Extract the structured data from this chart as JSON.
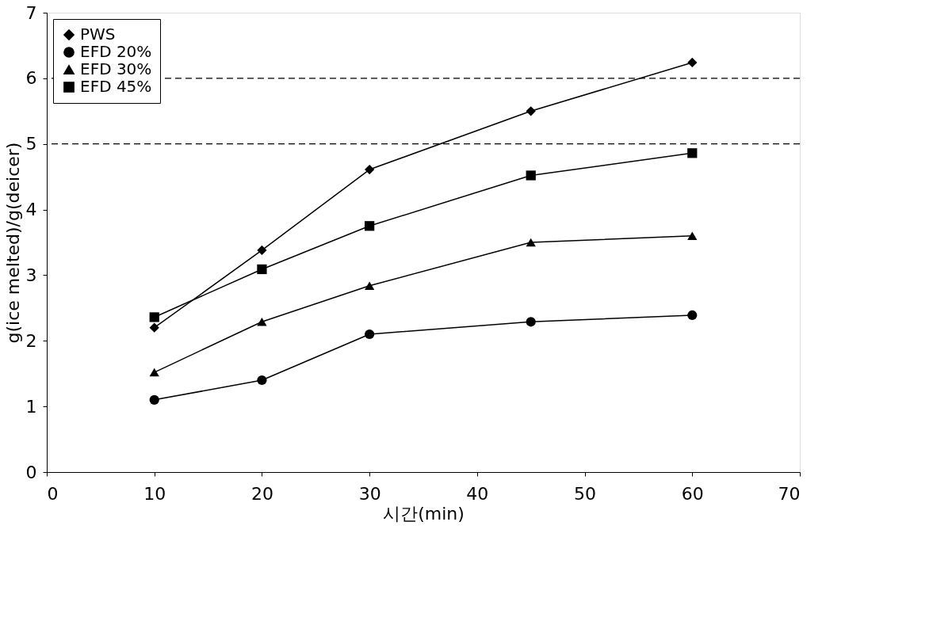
{
  "chart_data": {
    "type": "line",
    "xlabel": "시간(min)",
    "ylabel": "g(ice melted)/g(deicer)",
    "x": [
      10,
      20,
      30,
      45,
      60
    ],
    "series": [
      {
        "name": "PWS",
        "color": "#000000",
        "marker": "diamond",
        "values": [
          2.2,
          3.38,
          4.61,
          5.5,
          6.24
        ]
      },
      {
        "name": "EFD 20%",
        "color": "#000000",
        "marker": "circle",
        "values": [
          1.1,
          1.4,
          2.1,
          2.29,
          2.39
        ]
      },
      {
        "name": "EFD 30%",
        "color": "#000000",
        "marker": "triangle",
        "values": [
          1.52,
          2.29,
          2.84,
          3.5,
          3.6
        ]
      },
      {
        "name": "EFD 45%",
        "color": "#000000",
        "marker": "square",
        "values": [
          2.36,
          3.09,
          3.75,
          4.52,
          4.86
        ]
      }
    ],
    "xlim": [
      0,
      70
    ],
    "xticks": [
      0,
      10,
      20,
      30,
      40,
      50,
      60,
      70
    ],
    "ylim": [
      0,
      7
    ],
    "yticks": [
      0,
      1,
      2,
      3,
      4,
      5,
      6,
      7
    ],
    "ref_lines": [
      {
        "axis": "y",
        "value": 5,
        "line_style": "dashed"
      },
      {
        "axis": "y",
        "value": 6,
        "line_style": "dashed"
      }
    ],
    "grid": false,
    "legend": "top left",
    "line_style": "solid"
  }
}
